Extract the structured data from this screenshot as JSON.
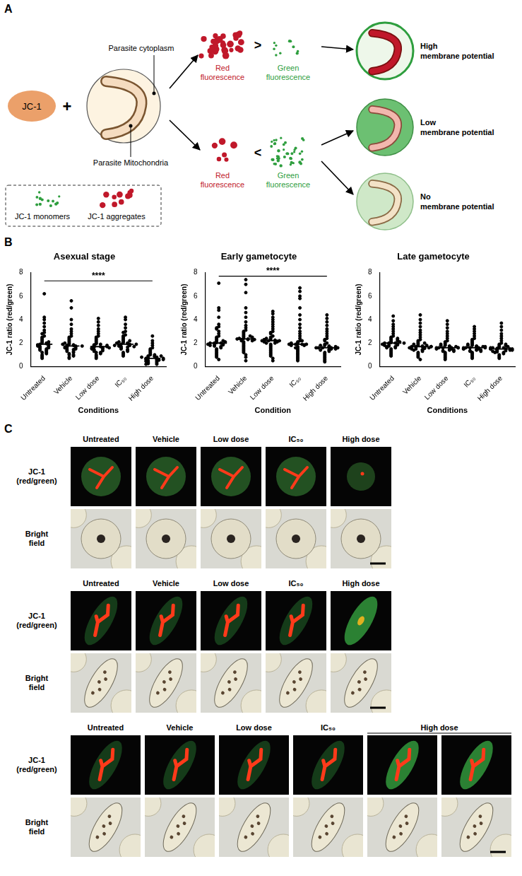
{
  "panel_labels": [
    "A",
    "B",
    "C"
  ],
  "diagram": {
    "dye": "JC-1",
    "operator": "+",
    "cell_labels": [
      "Parasite cytoplasm",
      "Parasite Mitochondria"
    ],
    "outcomes": [
      {
        "red_label": "Red fluorescence",
        "green_label": "Green fluorescence",
        "comparison": ">",
        "results": [
          "High membrane potential"
        ]
      },
      {
        "red_label": "Red fluorescence",
        "green_label": "Green fluorescence",
        "comparison": "<",
        "results": [
          "Low membrane potential",
          "No membrane potential"
        ]
      }
    ],
    "legend": [
      {
        "label": "JC-1 monomers",
        "color": "#2e9e3e"
      },
      {
        "label": "JC-1 aggregates",
        "color": "#c0182a"
      }
    ]
  },
  "chart_data": [
    {
      "type": "scatter",
      "title": "Asexual stage",
      "x_label": "Conditions",
      "y_label": "JC-1 ratio (red/green)",
      "categories": [
        "Untreated",
        "Vehicle",
        "Low dose",
        "IC₅₀",
        "High dose"
      ],
      "values": [
        [
          6.2,
          4.2,
          4.0,
          3.7,
          3.4,
          3.1,
          2.9,
          2.8,
          2.6,
          2.5,
          2.4,
          2.3,
          2.2,
          2.1,
          2.0,
          2.0,
          1.95,
          1.9,
          1.9,
          1.85,
          1.8,
          1.8,
          1.75,
          1.7,
          1.7,
          1.6,
          1.6,
          1.5,
          1.5,
          1.4,
          1.4,
          1.3,
          1.2,
          1.2,
          1.1,
          1.0,
          0.9,
          0.8,
          0.7,
          2.1
        ],
        [
          5.6,
          5.0,
          4.0,
          3.6,
          3.2,
          3.0,
          2.8,
          2.6,
          2.5,
          2.4,
          2.3,
          2.2,
          2.1,
          2.0,
          1.9,
          1.85,
          1.8,
          1.8,
          1.75,
          1.7,
          1.7,
          1.65,
          1.6,
          1.6,
          1.5,
          1.5,
          1.45,
          1.4,
          1.3,
          1.3,
          1.2,
          1.1,
          1.0,
          1.0,
          0.9,
          0.8,
          0.7,
          1.75,
          1.9,
          2.0
        ],
        [
          4.1,
          3.8,
          3.5,
          3.2,
          3.0,
          2.8,
          2.6,
          2.5,
          2.4,
          2.3,
          2.2,
          2.1,
          2.0,
          1.95,
          1.9,
          1.85,
          1.8,
          1.75,
          1.7,
          1.7,
          1.65,
          1.6,
          1.6,
          1.55,
          1.5,
          1.5,
          1.45,
          1.4,
          1.35,
          1.3,
          1.2,
          1.2,
          1.1,
          1.0,
          0.9,
          0.8,
          0.7,
          1.7,
          1.8,
          1.6
        ],
        [
          4.2,
          4.0,
          3.6,
          3.3,
          3.0,
          2.9,
          2.7,
          2.6,
          2.5,
          2.4,
          2.3,
          2.2,
          2.1,
          2.05,
          2.0,
          1.95,
          1.9,
          1.9,
          1.85,
          1.8,
          1.8,
          1.75,
          1.7,
          1.65,
          1.6,
          1.55,
          1.5,
          1.45,
          1.4,
          1.3,
          1.2,
          1.1,
          1.0,
          0.9,
          2.0,
          1.9,
          2.1,
          1.8,
          1.7,
          2.2
        ],
        [
          2.6,
          2.2,
          2.0,
          1.8,
          1.6,
          1.5,
          1.4,
          1.3,
          1.2,
          1.1,
          1.0,
          1.0,
          0.9,
          0.9,
          0.85,
          0.8,
          0.8,
          0.75,
          0.7,
          0.7,
          0.7,
          0.65,
          0.6,
          0.6,
          0.55,
          0.5,
          0.5,
          0.45,
          0.4,
          0.4,
          0.35,
          0.3,
          0.3,
          0.25,
          0.2,
          0.2,
          0.8,
          0.9,
          0.6,
          0.7
        ]
      ],
      "medians": [
        1.9,
        1.75,
        1.7,
        1.9,
        0.7
      ],
      "annotations": [
        {
          "text": "****",
          "from": "Untreated",
          "to": "High dose",
          "y": 7.3
        }
      ],
      "ylim": [
        0,
        8
      ],
      "yticks": [
        0,
        2,
        4,
        6,
        8
      ],
      "grid": false,
      "color": "#000000",
      "marker": "circle"
    },
    {
      "type": "scatter",
      "title": "Early gametocyte",
      "x_label": "Condition",
      "y_label": "JC-1 ratio (red/green)",
      "categories": [
        "Untreated",
        "Vehicle",
        "Low dose",
        "IC₅₀",
        "High dose"
      ],
      "values": [
        [
          7.1,
          5.0,
          4.8,
          4.2,
          3.6,
          3.4,
          3.3,
          3.2,
          3.0,
          2.8,
          2.6,
          2.5,
          2.4,
          2.3,
          2.2,
          2.1,
          2.05,
          2.0,
          2.0,
          1.95,
          1.9,
          1.85,
          1.8,
          1.75,
          1.7,
          1.6,
          1.5,
          1.4,
          1.3,
          1.2,
          1.1,
          1.0,
          0.9,
          0.8,
          0.6,
          2.0,
          2.1,
          1.9,
          2.2,
          1.8
        ],
        [
          7.4,
          7.0,
          6.3,
          5.0,
          4.6,
          4.2,
          3.8,
          3.5,
          3.3,
          3.1,
          3.0,
          2.9,
          2.8,
          2.7,
          2.6,
          2.5,
          2.4,
          2.35,
          2.3,
          2.3,
          2.2,
          2.1,
          2.0,
          1.9,
          1.8,
          1.7,
          1.6,
          1.5,
          1.4,
          1.3,
          1.2,
          1.0,
          0.8,
          0.5,
          2.4,
          2.35,
          2.5,
          2.2,
          2.6,
          2.3
        ],
        [
          4.7,
          4.5,
          4.2,
          4.0,
          3.8,
          3.6,
          3.4,
          3.2,
          3.0,
          2.9,
          2.8,
          2.6,
          2.5,
          2.4,
          2.3,
          2.25,
          2.2,
          2.2,
          2.15,
          2.1,
          2.0,
          1.9,
          1.8,
          1.7,
          1.6,
          1.5,
          1.4,
          1.3,
          1.2,
          1.1,
          1.0,
          0.9,
          0.7,
          0.5,
          2.2,
          2.3,
          2.1,
          2.4,
          2.0,
          2.2
        ],
        [
          6.7,
          6.4,
          6.0,
          5.8,
          5.0,
          4.4,
          4.0,
          3.6,
          3.3,
          3.0,
          2.8,
          2.6,
          2.4,
          2.2,
          2.1,
          2.0,
          1.95,
          1.9,
          1.9,
          1.85,
          1.8,
          1.7,
          1.6,
          1.5,
          1.4,
          1.3,
          1.2,
          1.1,
          1.0,
          0.9,
          0.8,
          0.7,
          0.6,
          0.5,
          1.9,
          2.0,
          1.8,
          1.9,
          1.6,
          2.2
        ],
        [
          4.4,
          4.1,
          3.8,
          3.5,
          3.2,
          3.0,
          2.8,
          2.6,
          2.4,
          2.3,
          2.2,
          2.0,
          1.9,
          1.8,
          1.75,
          1.7,
          1.65,
          1.6,
          1.6,
          1.55,
          1.5,
          1.45,
          1.4,
          1.3,
          1.2,
          1.1,
          1.0,
          0.9,
          0.8,
          0.7,
          0.6,
          0.5,
          0.4,
          1.6,
          1.7,
          1.5,
          1.6,
          1.4,
          1.8,
          1.6
        ]
      ],
      "medians": [
        2.0,
        2.35,
        2.2,
        1.9,
        1.6
      ],
      "annotations": [
        {
          "text": "****",
          "from": "Untreated",
          "to": "High dose",
          "y": 7.7
        }
      ],
      "ylim": [
        0,
        8
      ],
      "yticks": [
        0,
        2,
        4,
        6,
        8
      ],
      "grid": false,
      "color": "#000000",
      "marker": "circle"
    },
    {
      "type": "scatter",
      "title": "Late gametocyte",
      "x_label": "Conditions",
      "y_label": "JC-1 ratio (red/green)",
      "categories": [
        "Untreated",
        "Vehicle",
        "Low dose",
        "IC₅₀",
        "High dose"
      ],
      "values": [
        [
          4.3,
          3.9,
          3.6,
          3.4,
          3.2,
          3.0,
          2.8,
          2.6,
          2.5,
          2.4,
          2.3,
          2.2,
          2.1,
          2.05,
          2.0,
          2.0,
          1.95,
          1.9,
          1.85,
          1.8,
          1.75,
          1.7,
          1.6,
          1.5,
          1.4,
          1.3,
          1.2,
          1.1,
          1.0,
          0.9,
          2.0,
          2.1,
          1.9,
          2.2,
          1.8,
          2.3,
          1.7,
          2.0,
          1.6,
          2.4
        ],
        [
          4.4,
          4.0,
          3.7,
          3.4,
          3.1,
          2.9,
          2.7,
          2.5,
          2.3,
          2.2,
          2.1,
          2.0,
          1.9,
          1.8,
          1.75,
          1.7,
          1.7,
          1.65,
          1.6,
          1.55,
          1.5,
          1.45,
          1.4,
          1.3,
          1.2,
          1.1,
          1.0,
          0.9,
          0.8,
          0.6,
          1.7,
          1.8,
          1.6,
          1.9,
          1.5,
          1.7,
          2.0,
          1.4,
          1.6,
          1.7
        ],
        [
          3.9,
          3.6,
          3.3,
          3.0,
          2.8,
          2.6,
          2.4,
          2.2,
          2.1,
          2.0,
          1.9,
          1.8,
          1.75,
          1.7,
          1.65,
          1.6,
          1.6,
          1.55,
          1.5,
          1.45,
          1.4,
          1.35,
          1.3,
          1.2,
          1.1,
          1.0,
          0.9,
          0.8,
          0.7,
          0.6,
          1.6,
          1.7,
          1.5,
          1.6,
          1.8,
          1.4,
          1.6,
          1.9,
          1.3,
          1.6
        ],
        [
          3.4,
          3.2,
          3.0,
          2.8,
          2.6,
          2.4,
          2.3,
          2.2,
          2.1,
          2.0,
          1.9,
          1.8,
          1.75,
          1.7,
          1.65,
          1.6,
          1.6,
          1.55,
          1.5,
          1.45,
          1.4,
          1.35,
          1.3,
          1.2,
          1.1,
          1.0,
          0.9,
          0.8,
          0.7,
          1.6,
          1.7,
          1.5,
          1.6,
          1.8,
          1.4,
          1.6,
          1.9,
          1.3,
          1.5,
          1.7
        ],
        [
          3.7,
          3.4,
          3.1,
          2.8,
          2.6,
          2.4,
          2.2,
          2.0,
          1.9,
          1.8,
          1.7,
          1.65,
          1.6,
          1.55,
          1.5,
          1.5,
          1.45,
          1.4,
          1.35,
          1.3,
          1.25,
          1.2,
          1.1,
          1.0,
          0.9,
          0.8,
          0.7,
          1.5,
          1.6,
          1.4,
          1.5,
          1.7,
          1.3,
          1.5,
          1.8,
          1.4,
          1.6,
          1.2,
          1.5,
          1.9
        ]
      ],
      "medians": [
        2.0,
        1.7,
        1.6,
        1.6,
        1.5
      ],
      "ylim": [
        0,
        8
      ],
      "yticks": [
        0,
        2,
        4,
        6,
        8
      ],
      "grid": false,
      "color": "#000000",
      "marker": "circle"
    }
  ],
  "image_panels": [
    {
      "columns": [
        "Untreated",
        "Vehicle",
        "Low dose",
        "IC₅₀",
        "High dose"
      ],
      "images_per_column": [
        1,
        1,
        1,
        1,
        1
      ],
      "rows": [
        "JC-1 (red/green)",
        "Bright field"
      ]
    },
    {
      "columns": [
        "Untreated",
        "Vehicle",
        "Low dose",
        "IC₅₀",
        "High dose"
      ],
      "images_per_column": [
        1,
        1,
        1,
        1,
        1
      ],
      "rows": [
        "JC-1 (red/green)",
        "Bright field"
      ]
    },
    {
      "columns": [
        "Untreated",
        "Vehicle",
        "Low dose",
        "IC₅₀",
        "High dose"
      ],
      "images_per_column": [
        1,
        1,
        1,
        1,
        2
      ],
      "rows": [
        "JC-1 (red/green)",
        "Bright field"
      ]
    }
  ]
}
